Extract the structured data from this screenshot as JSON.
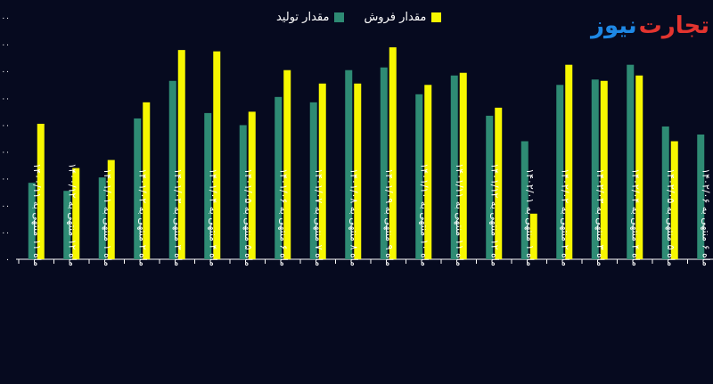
{
  "legend": {
    "production": "مقدار تولید",
    "sales": "مقدار فروش"
  },
  "logo": {
    "part1": "تجارت",
    "part2": "نیوز"
  },
  "colors": {
    "background": "#060a1f",
    "production": "#2e8b74",
    "sales": "#f7f700",
    "axis": "#ffffff",
    "grid": "#1d2240"
  },
  "chart_data": {
    "type": "bar",
    "categories": [
      "ماه ۱۱ منتهی به ۱۴۰۰/۱۱",
      "ماه ۱۲ منتهی به ۱۴۰۰/۱۲",
      "ماه ۱ منتهی به ۱۴۰۱/۰۱",
      "ماه ۲ منتهی به ۱۴۰۱/۰۲",
      "ماه ۳ منتهی به ۱۴۰۱/۰۳",
      "ماه ۴ منتهی به ۱۴۰۱/۰۴",
      "ماه ۵ منتهی به ۱۴۰۱/۰۵",
      "ماه ۶ منتهی به ۱۴۰۱/۰۶",
      "ماه ۷ منتهی به ۱۴۰۱/۰۷",
      "ماه ۸ منتهی به ۱۴۰۱/۰۸",
      "ماه ۹ منتهی به ۱۴۰۱/۰۹",
      "ماه ۱۰ منتهی به ۱۴۰۱/۱۰",
      "ماه ۱۱ منتهی به ۱۴۰۱/۱۱",
      "ماه ۱۲ منتهی به ۱۴۰۱/۱۲",
      "ماه ۱ منتهی به ۱۴۰۲/۰۱",
      "ماه ۲ منتهی به ۱۴۰۲/۰۲",
      "ماه ۳ منتهی به ۱۴۰۲/۰۳",
      "ماه ۴ منتهی به ۱۴۰۲/۰۴",
      "ماه ۵ منتهی به ۱۴۰۲/۰۵",
      "ماه ۶ منتهی به ۱۴۰۲/۰۶"
    ],
    "series": [
      {
        "name": "مقدار تولید",
        "values": [
          285,
          255,
          305,
          525,
          665,
          545,
          500,
          605,
          585,
          705,
          715,
          615,
          685,
          535,
          440,
          650,
          670,
          725,
          495,
          465
        ]
      },
      {
        "name": "مقدار فروش",
        "values": [
          505,
          340,
          370,
          585,
          780,
          775,
          550,
          705,
          655,
          655,
          790,
          650,
          695,
          565,
          170,
          725,
          665,
          685,
          440,
          null
        ]
      }
    ],
    "ylim": [
      0,
      800
    ],
    "yticks": [
      0,
      100,
      200,
      300,
      400,
      500,
      600,
      700,
      800,
      900
    ],
    "ytick_labels": [
      "۰",
      "۰۰",
      "۰۰",
      "۰۰",
      "۰۰",
      "۰۰",
      "۰۰",
      "۰۰",
      "۰۰",
      "۰۰"
    ],
    "grid": true,
    "legend_position": "top-center"
  }
}
